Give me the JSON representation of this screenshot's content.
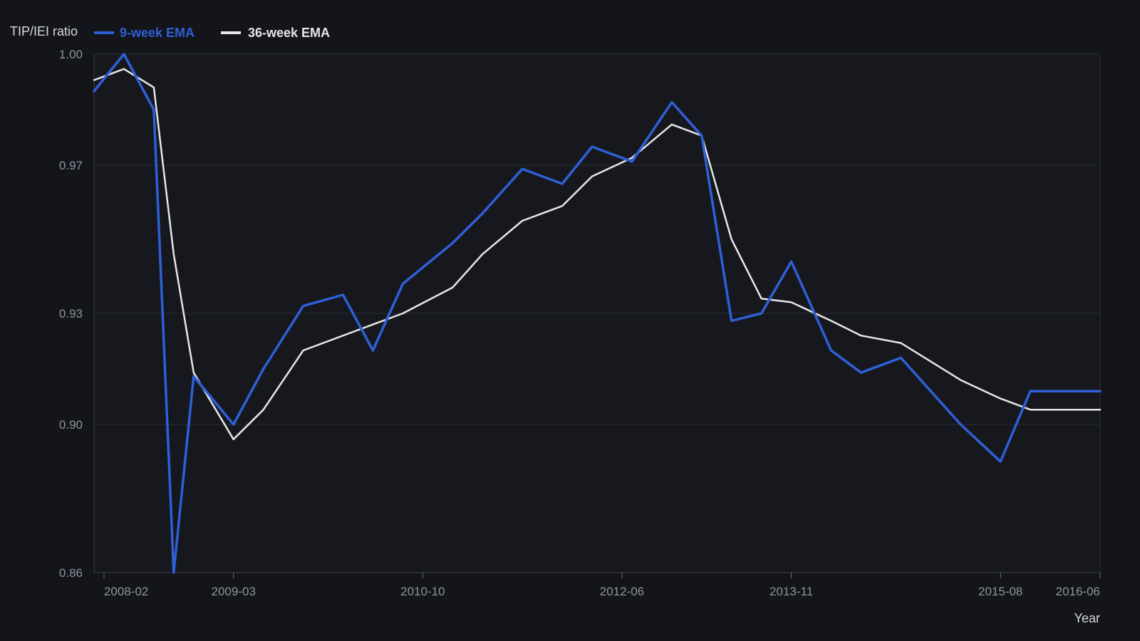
{
  "chart_data": {
    "type": "line",
    "ylabel": "TIP/IEI ratio",
    "xlabel": "Year",
    "ylim": [
      0.86,
      1.0
    ],
    "yticks": [
      {
        "value": 0.86,
        "label": "0.86"
      },
      {
        "value": 0.9,
        "label": "0.90"
      },
      {
        "value": 0.93,
        "label": "0.93"
      },
      {
        "value": 0.97,
        "label": "0.97"
      },
      {
        "value": 1.0,
        "label": "1.00"
      }
    ],
    "xlim": [
      "2008-01",
      "2016-06"
    ],
    "xticks": [
      {
        "value": "2008-02",
        "label": "2008-02"
      },
      {
        "value": "2009-03",
        "label": "2009-03"
      },
      {
        "value": "2010-10",
        "label": "2010-10"
      },
      {
        "value": "2012-06",
        "label": "2012-06"
      },
      {
        "value": "2013-11",
        "label": "2013-11"
      },
      {
        "value": "2015-08",
        "label": "2015-08"
      },
      {
        "value": "2016-06",
        "label": "2016-06"
      }
    ],
    "grid": "horizontal",
    "legend_position": "top-left",
    "x": [
      "2008-01",
      "2008-04",
      "2008-07",
      "2008-09",
      "2008-11",
      "2009-03",
      "2009-06",
      "2009-10",
      "2010-02",
      "2010-05",
      "2010-08",
      "2011-01",
      "2011-04",
      "2011-08",
      "2011-12",
      "2012-03",
      "2012-07",
      "2012-11",
      "2013-02",
      "2013-05",
      "2013-08",
      "2013-11",
      "2014-03",
      "2014-06",
      "2014-10",
      "2015-01",
      "2015-04",
      "2015-08",
      "2015-11",
      "2016-03",
      "2016-06"
    ],
    "series": [
      {
        "name": "9-week EMA",
        "color": "#2f5fd6",
        "values": [
          0.99,
          1.0,
          0.985,
          0.86,
          0.913,
          0.9,
          0.915,
          0.932,
          0.935,
          0.92,
          0.938,
          0.949,
          0.957,
          0.969,
          0.965,
          0.975,
          0.971,
          0.987,
          0.978,
          0.928,
          0.93,
          0.944,
          0.92,
          0.914,
          0.918,
          0.909,
          0.9,
          0.89,
          0.909,
          0.909,
          0.909
        ]
      },
      {
        "name": "36-week EMA",
        "color": "#e6e6e6",
        "values": [
          0.993,
          0.996,
          0.991,
          0.946,
          0.914,
          0.896,
          0.904,
          0.92,
          0.924,
          0.927,
          0.93,
          0.937,
          0.946,
          0.955,
          0.959,
          0.967,
          0.972,
          0.981,
          0.978,
          0.95,
          0.934,
          0.933,
          0.928,
          0.924,
          0.922,
          0.917,
          0.912,
          0.907,
          0.904,
          0.904,
          0.904
        ]
      }
    ]
  }
}
